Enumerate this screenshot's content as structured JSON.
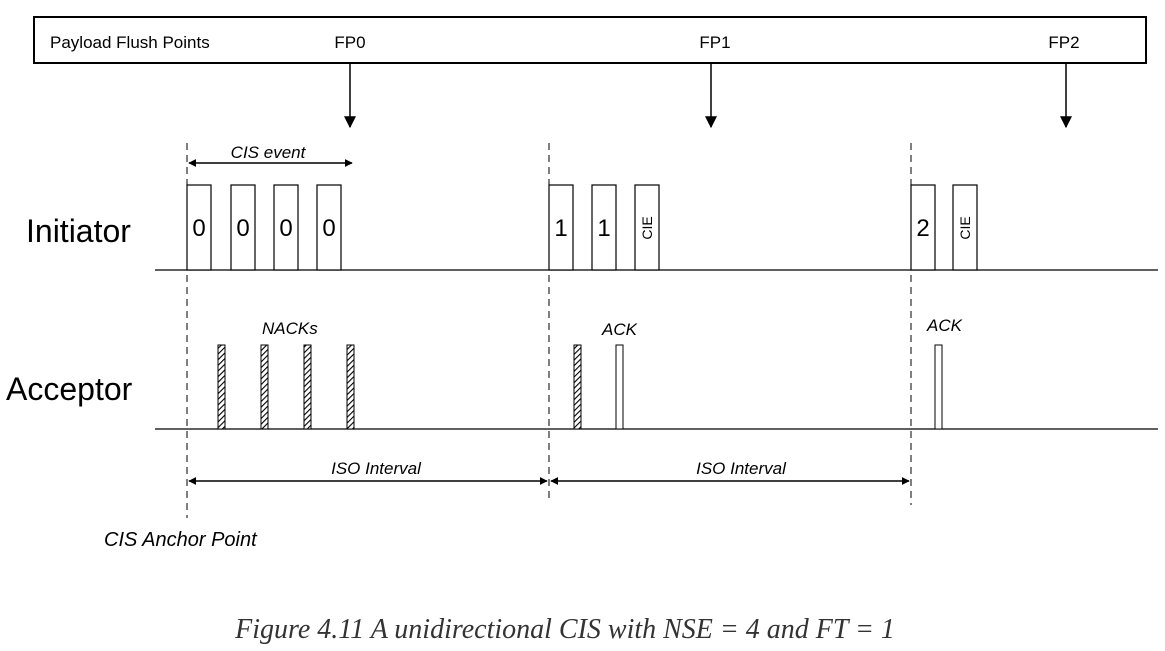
{
  "flush_points": {
    "label": "Payload Flush Points",
    "points": [
      "FP0",
      "FP1",
      "FP2"
    ]
  },
  "lanes": {
    "initiator": "Initiator",
    "acceptor": "Acceptor"
  },
  "annotations": {
    "cis_event": "CIS event",
    "nacks": "NACKs",
    "ack_1": "ACK",
    "ack_2": "ACK",
    "iso_interval_1": "ISO Interval",
    "iso_interval_2": "ISO Interval",
    "anchor_point": "CIS Anchor Point"
  },
  "initiator_packets": [
    {
      "label": "0",
      "kind": "data"
    },
    {
      "label": "0",
      "kind": "data"
    },
    {
      "label": "0",
      "kind": "data"
    },
    {
      "label": "0",
      "kind": "data"
    },
    {
      "label": "1",
      "kind": "data"
    },
    {
      "label": "1",
      "kind": "data"
    },
    {
      "label": "CIE",
      "kind": "cie"
    },
    {
      "label": "2",
      "kind": "data"
    },
    {
      "label": "CIE",
      "kind": "cie"
    }
  ],
  "acceptor_responses": [
    "nack",
    "nack",
    "nack",
    "nack",
    "nack",
    "ack",
    "ack"
  ],
  "caption": "Figure 4.11  A unidirectional CIS with NSE = 4 and FT = 1",
  "colors": {
    "line": "#000000",
    "caption_text": "#333333"
  }
}
